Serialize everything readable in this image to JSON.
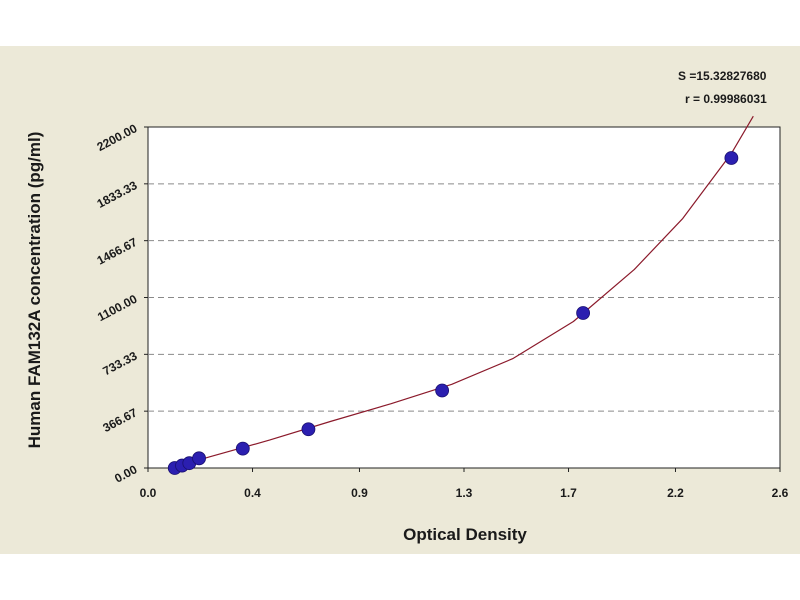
{
  "chart_data": {
    "type": "scatter",
    "xlabel": "Optical Density",
    "ylabel": "Human FAM132A concentration (pg/ml)",
    "xlim": [
      0.0,
      2.6
    ],
    "ylim": [
      0.0,
      2200.0
    ],
    "x_ticks": [
      "0.0",
      "0.4",
      "0.9",
      "1.3",
      "1.7",
      "2.2",
      "2.6"
    ],
    "x_tick_values": [
      0.0,
      0.43,
      0.87,
      1.3,
      1.73,
      2.17,
      2.6
    ],
    "y_ticks": [
      "0.00",
      "366.67",
      "733.33",
      "1100.00",
      "1466.67",
      "1833.33",
      "2200.00"
    ],
    "y_tick_values": [
      0.0,
      366.67,
      733.33,
      1100.0,
      1466.67,
      1833.33,
      2200.0
    ],
    "grid": "horizontal dashed",
    "series": [
      {
        "points": [
          {
            "x": 0.11,
            "y": 0.0
          },
          {
            "x": 0.14,
            "y": 15.6
          },
          {
            "x": 0.17,
            "y": 31.2
          },
          {
            "x": 0.21,
            "y": 62.5
          },
          {
            "x": 0.39,
            "y": 125.0
          },
          {
            "x": 0.66,
            "y": 250.0
          },
          {
            "x": 1.21,
            "y": 500.0
          },
          {
            "x": 1.79,
            "y": 1000.0
          },
          {
            "x": 2.4,
            "y": 2000.0
          }
        ],
        "color": "#2b1fb0"
      }
    ],
    "fit_curve": {
      "color": "#8b1a2b",
      "points": [
        {
          "x": 0.1,
          "y": 0.0
        },
        {
          "x": 0.25,
          "y": 70
        },
        {
          "x": 0.5,
          "y": 180
        },
        {
          "x": 0.75,
          "y": 300
        },
        {
          "x": 1.0,
          "y": 415
        },
        {
          "x": 1.25,
          "y": 540
        },
        {
          "x": 1.5,
          "y": 705
        },
        {
          "x": 1.75,
          "y": 945
        },
        {
          "x": 2.0,
          "y": 1280
        },
        {
          "x": 2.2,
          "y": 1610
        },
        {
          "x": 2.4,
          "y": 2030
        },
        {
          "x": 2.49,
          "y": 2270
        }
      ]
    },
    "stats": {
      "s": "S =15.32827680",
      "r": "r = 0.99986031"
    }
  }
}
